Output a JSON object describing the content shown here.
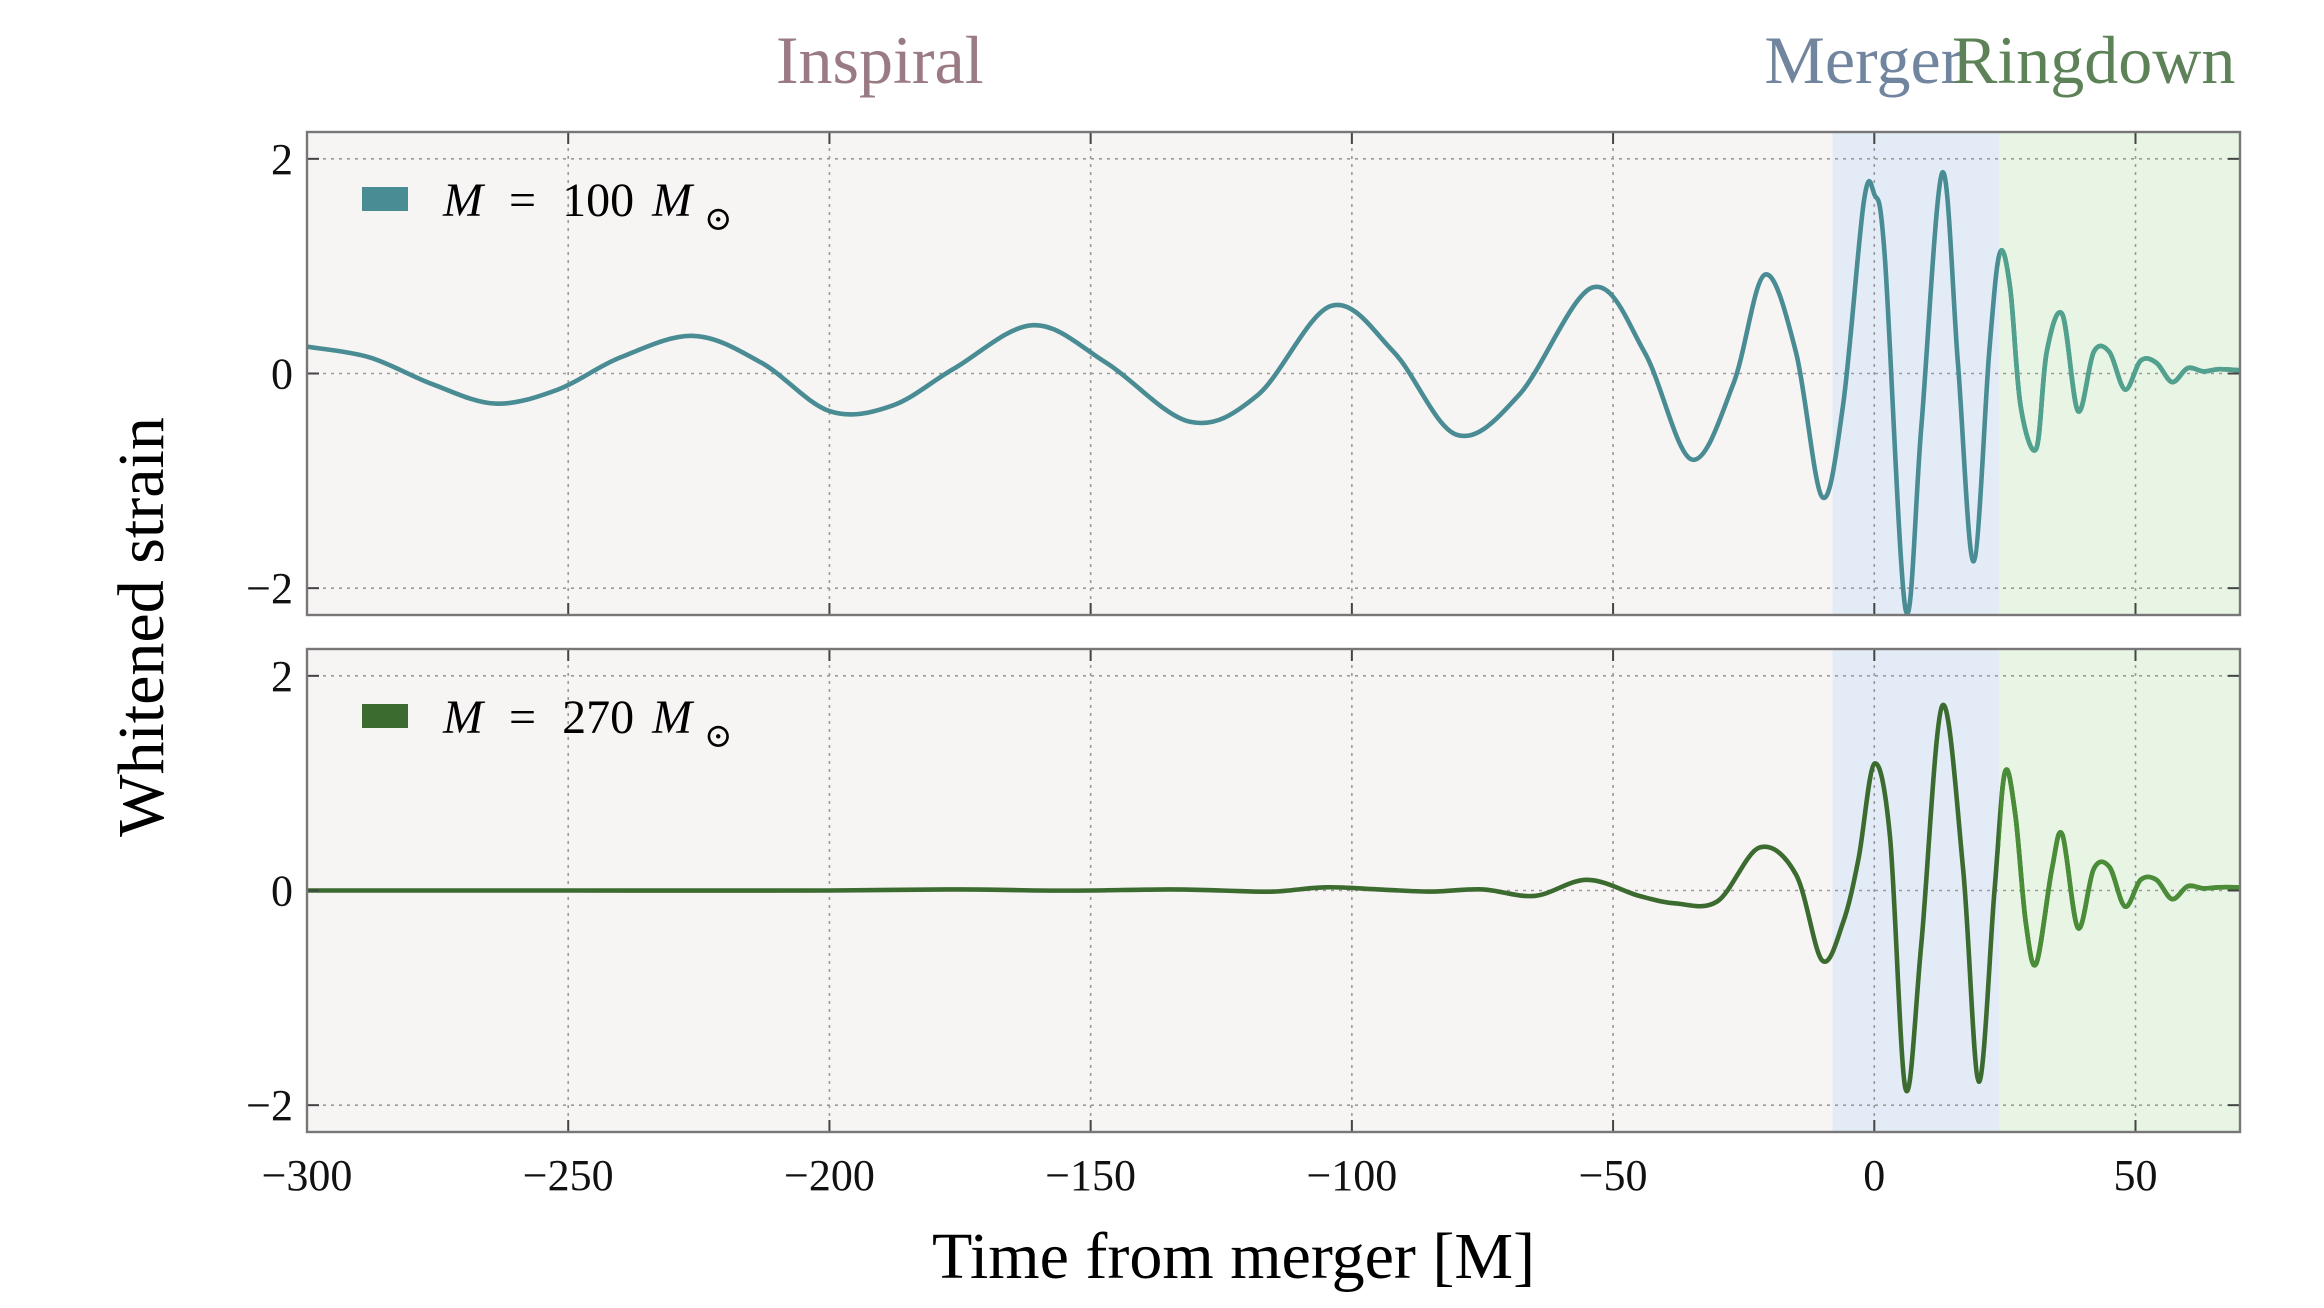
{
  "chart_data": {
    "type": "line",
    "xlabel": "Time from merger [M]",
    "ylabel": "Whitened strain",
    "xlim": [
      -300,
      70
    ],
    "ylim": [
      -2.25,
      2.25
    ],
    "xticks": [
      -300,
      -250,
      -200,
      -150,
      -100,
      -50,
      0,
      50
    ],
    "xtick_labels": [
      "−300",
      "−250",
      "−200",
      "−150",
      "−100",
      "−50",
      "0",
      "50"
    ],
    "yticks": [
      -2,
      0,
      2
    ],
    "ytick_labels": [
      "−2",
      "0",
      "2"
    ],
    "grid": true,
    "phases": [
      {
        "name": "Inspiral",
        "x_range": [
          -300,
          -8
        ],
        "color": "#f7f4f4",
        "label_color": "#9a7b83"
      },
      {
        "name": "Merger",
        "x_range": [
          -8,
          24
        ],
        "color": "#e3ecf6",
        "label_color": "#71869e"
      },
      {
        "name": "Ringdown",
        "x_range": [
          24,
          70
        ],
        "color": "#e9f5e4",
        "label_color": "#5e8258"
      }
    ],
    "panels": [
      {
        "legend": {
          "prefix": "M",
          "eq": "=",
          "value": "100",
          "suffix": "M",
          "subscript": "⊙",
          "placement": "top-left"
        },
        "series": {
          "color": "#4a8c94",
          "ringdown_color": "#52a08e",
          "x": [
            -300,
            -288,
            -276,
            -264,
            -252,
            -240,
            -226,
            -213,
            -200,
            -188,
            -176,
            -161,
            -147,
            -131,
            -118,
            -104,
            -92,
            -80,
            -68,
            -54,
            -44,
            -35,
            -27,
            -21,
            -15,
            -10,
            -6,
            -2,
            0,
            2,
            6,
            9,
            13,
            16,
            19,
            22,
            24,
            26,
            28,
            31,
            33,
            36,
            39,
            42,
            45,
            48,
            51,
            54,
            57,
            60,
            63,
            66,
            70
          ],
          "y": [
            0.25,
            0.15,
            -0.1,
            -0.28,
            -0.15,
            0.15,
            0.35,
            0.1,
            -0.35,
            -0.3,
            0.05,
            0.45,
            0.1,
            -0.45,
            -0.2,
            0.63,
            0.2,
            -0.57,
            -0.2,
            0.8,
            0.2,
            -0.8,
            -0.1,
            0.92,
            0.2,
            -1.15,
            -0.3,
            1.6,
            1.67,
            1.1,
            -2.2,
            -0.5,
            1.87,
            0.1,
            -1.75,
            0.2,
            1.12,
            0.8,
            -0.3,
            -0.7,
            0.2,
            0.55,
            -0.35,
            0.2,
            0.2,
            -0.15,
            0.12,
            0.1,
            -0.08,
            0.05,
            0.02,
            0.04,
            0.03
          ]
        }
      },
      {
        "legend": {
          "prefix": "M",
          "eq": "=",
          "value": "270",
          "suffix": "M",
          "subscript": "⊙",
          "placement": "top-left"
        },
        "series": {
          "color": "#3c6b2f",
          "ringdown_color": "#4a8c38",
          "x": [
            -300,
            -250,
            -200,
            -175,
            -160,
            -150,
            -135,
            -125,
            -115,
            -105,
            -95,
            -85,
            -75,
            -65,
            -55,
            -45,
            -38,
            -30,
            -22,
            -15,
            -10,
            -6,
            -3,
            0,
            3,
            6,
            9,
            13,
            17,
            20,
            23,
            25,
            27,
            29,
            31,
            34,
            36,
            39,
            42,
            45,
            48,
            51,
            54,
            57,
            60,
            63,
            66,
            70
          ],
          "y": [
            0.0,
            0.0,
            0.0,
            0.01,
            0.0,
            0.0,
            0.01,
            0.0,
            -0.01,
            0.03,
            0.01,
            -0.01,
            0.01,
            -0.05,
            0.1,
            -0.05,
            -0.12,
            -0.1,
            0.4,
            0.15,
            -0.65,
            -0.3,
            0.3,
            1.18,
            0.5,
            -1.85,
            -0.5,
            1.72,
            0.2,
            -1.78,
            0.0,
            1.1,
            0.7,
            -0.3,
            -0.68,
            0.2,
            0.52,
            -0.35,
            0.2,
            0.22,
            -0.15,
            0.1,
            0.1,
            -0.08,
            0.04,
            0.02,
            0.03,
            0.03
          ]
        }
      }
    ]
  }
}
